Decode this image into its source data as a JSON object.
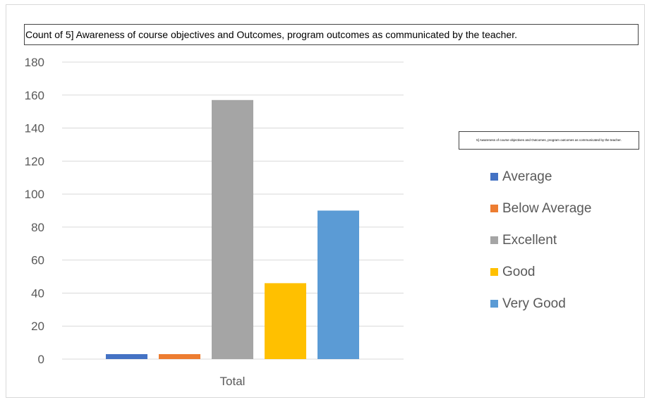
{
  "chart_data": {
    "type": "bar",
    "title": "Count of 5] Awareness of course objectives and Outcomes, program outcomes as communicated by the teacher.",
    "legend_title": "5] Awareness of course objectives and Outcomes, program outcomes as communicated by the teacher.",
    "categories": [
      "Total"
    ],
    "series": [
      {
        "name": "Average",
        "values": [
          3
        ],
        "color": "#4472C4"
      },
      {
        "name": "Below Average",
        "values": [
          3
        ],
        "color": "#ED7D31"
      },
      {
        "name": "Excellent",
        "values": [
          157
        ],
        "color": "#A5A5A5"
      },
      {
        "name": "Good",
        "values": [
          46
        ],
        "color": "#FFC000"
      },
      {
        "name": "Very Good",
        "values": [
          90
        ],
        "color": "#5B9BD5"
      }
    ],
    "ylim": [
      0,
      180
    ],
    "yticks": [
      "0",
      "20",
      "40",
      "60",
      "80",
      "100",
      "120",
      "140",
      "160",
      "180"
    ],
    "grid": true,
    "legend_position": "right"
  }
}
